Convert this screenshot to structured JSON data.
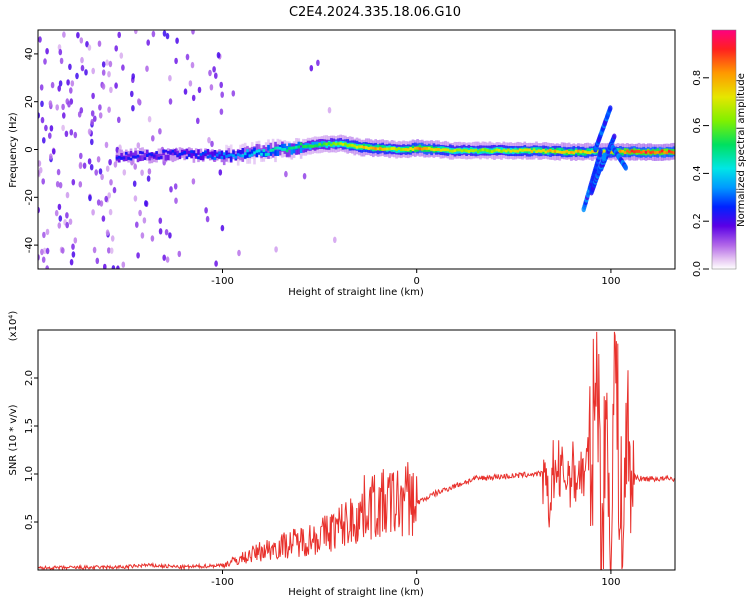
{
  "title": "C2E4.2024.335.18.06.G10",
  "chart_data": [
    {
      "type": "heatmap",
      "xlabel": "Height of straight line (km)",
      "ylabel": "Frequency (Hz)",
      "xlim": [
        -195,
        133
      ],
      "ylim": [
        -50,
        50
      ],
      "x_ticks": [
        -100,
        0,
        100
      ],
      "x_tick_labels": [
        "-100",
        "0",
        "100"
      ],
      "y_ticks": [
        -40,
        -20,
        0,
        20,
        40
      ],
      "y_tick_labels": [
        "-40",
        "-20",
        "0",
        "20",
        "40"
      ],
      "colorbar": {
        "label": "Normalized spectral amplitude",
        "range": [
          0.0,
          1.0
        ],
        "ticks": [
          0.0,
          0.2,
          0.4,
          0.6,
          0.8
        ],
        "tick_labels": [
          "0.0",
          "0.2",
          "0.4",
          "0.6",
          "0.8"
        ]
      },
      "ridge": {
        "x": [
          -150,
          -130,
          -110,
          -100,
          -80,
          -60,
          -50,
          -40,
          -30,
          -20,
          -10,
          0,
          20,
          40,
          60,
          80,
          90,
          100,
          110,
          133
        ],
        "y": [
          -3,
          -2,
          -2,
          -3,
          -1,
          1,
          2,
          2.5,
          1,
          0.5,
          0,
          0.5,
          -0.5,
          -0.5,
          -0.5,
          -1,
          -1,
          -1,
          -1,
          -1
        ],
        "amplitude": [
          0.25,
          0.25,
          0.3,
          0.35,
          0.45,
          0.55,
          0.6,
          0.7,
          0.8,
          0.85,
          0.7,
          0.9,
          0.7,
          0.7,
          0.8,
          0.85,
          0.8,
          0.8,
          0.95,
          0.95
        ]
      },
      "grid": false,
      "legend": "none"
    },
    {
      "type": "line",
      "xlabel": "Height of straight line (km)",
      "ylabel": "SNR (10 * v/v)",
      "scale_label": "(x10⁴)",
      "xlim": [
        -195,
        133
      ],
      "ylim": [
        0,
        2.5
      ],
      "x_ticks": [
        -100,
        0,
        100
      ],
      "x_tick_labels": [
        "-100",
        "0",
        "100"
      ],
      "y_ticks": [
        0.5,
        1.0,
        1.5,
        2.0
      ],
      "y_tick_labels": [
        "0.5",
        "1.0",
        "1.5",
        "2.0"
      ],
      "series": [
        {
          "color": "#e8312c",
          "x": [
            -195,
            -150,
            -140,
            -120,
            -100,
            -90,
            -80,
            -70,
            -60,
            -50,
            -40,
            -30,
            -25,
            -20,
            -15,
            -10,
            -5,
            0,
            10,
            20,
            30,
            40,
            50,
            60,
            65,
            68,
            70,
            75,
            80,
            85,
            90,
            93,
            95,
            98,
            100,
            102,
            104,
            106,
            108,
            110,
            115,
            120,
            125,
            133
          ],
          "y": [
            0.02,
            0.03,
            0.05,
            0.03,
            0.05,
            0.12,
            0.2,
            0.25,
            0.3,
            0.35,
            0.45,
            0.55,
            0.7,
            0.65,
            0.7,
            0.7,
            0.75,
            0.7,
            0.8,
            0.88,
            0.95,
            0.97,
            0.98,
            1.0,
            1.0,
            0.6,
            1.05,
            0.98,
            1.0,
            1.0,
            1.1,
            2.4,
            0.3,
            1.6,
            0.1,
            2.4,
            1.2,
            0.2,
            1.5,
            1.0,
            0.95,
            0.95,
            0.95,
            0.95
          ]
        }
      ],
      "grid": false,
      "legend": "none"
    }
  ]
}
